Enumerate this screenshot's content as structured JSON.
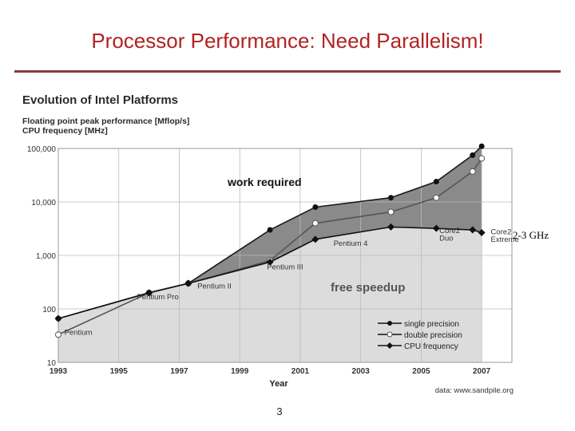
{
  "slide": {
    "title": "Processor Performance: Need Parallelism!",
    "page_number": "3",
    "annotation": "2-3 GHz"
  },
  "chart_data": {
    "type": "line",
    "title": "Evolution of Intel Platforms",
    "subtitle_lines": [
      "Floating point peak performance [Mflop/s]",
      "CPU frequency [MHz]"
    ],
    "xlabel": "Year",
    "ylabel": "",
    "yscale": "log",
    "xlim": [
      1993,
      2008
    ],
    "ylim": [
      10,
      100000
    ],
    "x_ticks": [
      "1993",
      "1995",
      "1997",
      "1999",
      "2001",
      "2003",
      "2005",
      "2007"
    ],
    "y_ticks": [
      {
        "value": 10,
        "label": "10"
      },
      {
        "value": 100,
        "label": "100"
      },
      {
        "value": 1000,
        "label": "1,000"
      },
      {
        "value": 10000,
        "label": "10,000"
      },
      {
        "value": 100000,
        "label": "100,000"
      }
    ],
    "grid": true,
    "series": [
      {
        "name": "single precision",
        "marker": "filled-circle",
        "color": "#1a1a1a",
        "x": [
          1993,
          1996,
          1997.3,
          2000,
          2001.5,
          2004,
          2005.5,
          2006.7,
          2007
        ],
        "y": [
          66,
          200,
          300,
          3000,
          8000,
          12000,
          24000,
          75000,
          110000
        ]
      },
      {
        "name": "double precision",
        "marker": "open-circle",
        "color": "#555555",
        "x": [
          1993,
          1996,
          1997.3,
          2000,
          2001.5,
          2004,
          2005.5,
          2006.7,
          2007
        ],
        "y": [
          33,
          200,
          300,
          800,
          4000,
          6500,
          12000,
          37000,
          65000
        ]
      },
      {
        "name": "CPU frequency",
        "marker": "diamond",
        "color": "#111111",
        "x": [
          1993,
          1996,
          1997.3,
          2000,
          2001.5,
          2004,
          2005.5,
          2006.7,
          2007
        ],
        "y": [
          66,
          200,
          300,
          750,
          2000,
          3400,
          3200,
          3000,
          2660
        ]
      }
    ],
    "region_labels": {
      "upper": "work required",
      "lower": "free speedup"
    },
    "annotations": [
      {
        "text": "Pentium",
        "x": 1993.2,
        "y": 33
      },
      {
        "text": "Pentium Pro",
        "x": 1995.6,
        "y": 150
      },
      {
        "text": "Pentium II",
        "x": 1997.6,
        "y": 240
      },
      {
        "text": "Pentium III",
        "x": 1999.9,
        "y": 550
      },
      {
        "text": "Pentium 4",
        "x": 2002.1,
        "y": 1500
      },
      {
        "text": "Core2",
        "x": 2005.6,
        "y": 2600
      },
      {
        "text": "Duo",
        "x": 2005.6,
        "y": 1900
      },
      {
        "text": "Core2",
        "x": 2007.3,
        "y": 2500
      },
      {
        "text": "Extreme",
        "x": 2007.3,
        "y": 1800
      }
    ],
    "source": "data: www.sandpile.org",
    "legend_position": "bottom-right"
  }
}
